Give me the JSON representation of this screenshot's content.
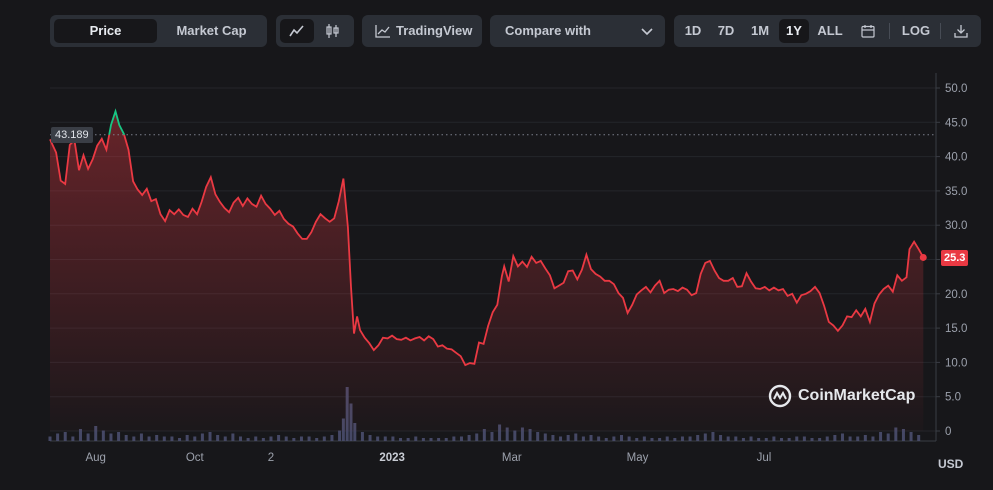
{
  "toolbar": {
    "price_tab": "Price",
    "marketcap_tab": "Market Cap",
    "line_chart_icon": "line-chart-icon",
    "candle_chart_icon": "candlestick-icon",
    "tradingview_label": "TradingView",
    "compare_label": "Compare with",
    "ranges": [
      "1D",
      "7D",
      "1M",
      "1Y",
      "ALL"
    ],
    "active_range": "1Y",
    "log_label": "LOG",
    "calendar_icon": "calendar-icon",
    "download_icon": "download-icon"
  },
  "watermark": "CoinMarketCap",
  "colors": {
    "up": "#16c784",
    "down": "#ea3943",
    "bg": "#17171a"
  },
  "chart_data": {
    "type": "area",
    "currency_label": "USD",
    "ylim": [
      0,
      50
    ],
    "yticks": [
      "50.0",
      "45.0",
      "40.0",
      "35.0",
      "30.0",
      "25.0",
      "20.0",
      "15.0",
      "10.0",
      "5.0",
      "0"
    ],
    "xtick_labels": [
      {
        "label": "Aug",
        "t": 0.06
      },
      {
        "label": "Oct",
        "t": 0.19
      },
      {
        "label": "2",
        "t": 0.29
      },
      {
        "label": "2023",
        "t": 0.449,
        "bold": true
      },
      {
        "label": "Mar",
        "t": 0.606
      },
      {
        "label": "May",
        "t": 0.771
      },
      {
        "label": "Jul",
        "t": 0.937
      }
    ],
    "current_price": "25.3",
    "reference_line": "43.189",
    "reference_value": 43.189,
    "series": [
      {
        "values": [
          [
            0.0,
            42.5
          ],
          [
            0.008,
            40.6
          ],
          [
            0.014,
            36.5
          ],
          [
            0.02,
            36.0
          ],
          [
            0.026,
            41.7
          ],
          [
            0.032,
            42.4
          ],
          [
            0.038,
            38.0
          ],
          [
            0.044,
            40.2
          ],
          [
            0.05,
            38.2
          ],
          [
            0.056,
            39.6
          ],
          [
            0.062,
            41.6
          ],
          [
            0.068,
            42.6
          ],
          [
            0.074,
            41.0
          ],
          [
            0.08,
            44.6
          ],
          [
            0.086,
            46.6
          ],
          [
            0.091,
            44.6
          ],
          [
            0.097,
            43.3
          ],
          [
            0.103,
            41.0
          ],
          [
            0.109,
            36.4
          ],
          [
            0.115,
            35.2
          ],
          [
            0.121,
            34.4
          ],
          [
            0.127,
            35.3
          ],
          [
            0.133,
            33.5
          ],
          [
            0.139,
            33.8
          ],
          [
            0.145,
            31.6
          ],
          [
            0.151,
            30.6
          ],
          [
            0.157,
            32.2
          ],
          [
            0.163,
            31.6
          ],
          [
            0.169,
            32.3
          ],
          [
            0.175,
            31.5
          ],
          [
            0.181,
            31.2
          ],
          [
            0.187,
            32.4
          ],
          [
            0.193,
            31.6
          ],
          [
            0.199,
            33.4
          ],
          [
            0.205,
            35.6
          ],
          [
            0.211,
            37.0
          ],
          [
            0.217,
            34.5
          ],
          [
            0.223,
            33.4
          ],
          [
            0.229,
            32.5
          ],
          [
            0.235,
            31.9
          ],
          [
            0.241,
            33.3
          ],
          [
            0.247,
            34.0
          ],
          [
            0.253,
            32.8
          ],
          [
            0.259,
            33.9
          ],
          [
            0.265,
            33.1
          ],
          [
            0.271,
            32.7
          ],
          [
            0.277,
            34.3
          ],
          [
            0.283,
            33.1
          ],
          [
            0.289,
            32.4
          ],
          [
            0.295,
            31.5
          ],
          [
            0.301,
            32.1
          ],
          [
            0.307,
            30.9
          ],
          [
            0.313,
            30.2
          ],
          [
            0.319,
            29.8
          ],
          [
            0.325,
            28.8
          ],
          [
            0.331,
            28.0
          ],
          [
            0.337,
            28.0
          ],
          [
            0.343,
            29.0
          ],
          [
            0.349,
            30.5
          ],
          [
            0.355,
            31.6
          ],
          [
            0.361,
            31.0
          ],
          [
            0.367,
            30.5
          ],
          [
            0.373,
            31.0
          ],
          [
            0.379,
            33.5
          ],
          [
            0.385,
            36.8
          ],
          [
            0.391,
            29.7
          ],
          [
            0.395,
            21.0
          ],
          [
            0.399,
            14.2
          ],
          [
            0.403,
            16.7
          ],
          [
            0.407,
            14.7
          ],
          [
            0.413,
            13.6
          ],
          [
            0.419,
            12.8
          ],
          [
            0.425,
            11.8
          ],
          [
            0.431,
            12.5
          ],
          [
            0.437,
            13.6
          ],
          [
            0.443,
            13.5
          ],
          [
            0.449,
            13.9
          ],
          [
            0.455,
            13.4
          ],
          [
            0.461,
            13.3
          ],
          [
            0.467,
            13.6
          ],
          [
            0.473,
            13.2
          ],
          [
            0.479,
            13.5
          ],
          [
            0.485,
            13.7
          ],
          [
            0.491,
            13.2
          ],
          [
            0.497,
            13.8
          ],
          [
            0.503,
            13.4
          ],
          [
            0.509,
            12.3
          ],
          [
            0.515,
            12.5
          ],
          [
            0.521,
            12.0
          ],
          [
            0.527,
            11.9
          ],
          [
            0.533,
            11.4
          ],
          [
            0.539,
            10.9
          ],
          [
            0.545,
            9.6
          ],
          [
            0.551,
            9.9
          ],
          [
            0.557,
            9.8
          ],
          [
            0.563,
            12.9
          ],
          [
            0.569,
            12.7
          ],
          [
            0.575,
            15.3
          ],
          [
            0.581,
            17.3
          ],
          [
            0.587,
            18.4
          ],
          [
            0.593,
            22.6
          ],
          [
            0.596,
            24.0
          ],
          [
            0.602,
            21.8
          ],
          [
            0.608,
            25.5
          ],
          [
            0.614,
            24.0
          ],
          [
            0.62,
            24.7
          ],
          [
            0.626,
            23.9
          ],
          [
            0.632,
            25.4
          ],
          [
            0.638,
            24.5
          ],
          [
            0.644,
            24.8
          ],
          [
            0.65,
            23.7
          ],
          [
            0.656,
            22.7
          ],
          [
            0.662,
            20.8
          ],
          [
            0.668,
            21.2
          ],
          [
            0.674,
            21.6
          ],
          [
            0.68,
            23.3
          ],
          [
            0.686,
            23.4
          ],
          [
            0.692,
            22.1
          ],
          [
            0.698,
            23.5
          ],
          [
            0.704,
            25.7
          ],
          [
            0.71,
            23.6
          ],
          [
            0.716,
            22.9
          ],
          [
            0.722,
            22.5
          ],
          [
            0.728,
            21.9
          ],
          [
            0.734,
            21.9
          ],
          [
            0.74,
            21.4
          ],
          [
            0.746,
            20.1
          ],
          [
            0.752,
            19.4
          ],
          [
            0.758,
            17.2
          ],
          [
            0.764,
            18.4
          ],
          [
            0.77,
            19.9
          ],
          [
            0.776,
            20.5
          ],
          [
            0.782,
            21.0
          ],
          [
            0.788,
            20.2
          ],
          [
            0.794,
            21.2
          ],
          [
            0.8,
            21.9
          ],
          [
            0.806,
            20.1
          ],
          [
            0.812,
            20.6
          ],
          [
            0.818,
            20.7
          ],
          [
            0.824,
            20.4
          ],
          [
            0.83,
            20.9
          ],
          [
            0.836,
            20.6
          ],
          [
            0.842,
            19.8
          ],
          [
            0.848,
            20.1
          ],
          [
            0.854,
            22.9
          ],
          [
            0.86,
            24.5
          ],
          [
            0.866,
            24.8
          ],
          [
            0.872,
            23.4
          ],
          [
            0.878,
            22.3
          ],
          [
            0.884,
            21.9
          ],
          [
            0.89,
            21.9
          ],
          [
            0.896,
            22.3
          ],
          [
            0.902,
            21.0
          ],
          [
            0.908,
            21.1
          ],
          [
            0.914,
            23.0
          ],
          [
            0.92,
            21.8
          ],
          [
            0.926,
            20.8
          ],
          [
            0.932,
            20.7
          ],
          [
            0.938,
            21.0
          ],
          [
            0.944,
            20.5
          ],
          [
            0.95,
            20.9
          ],
          [
            0.956,
            20.5
          ],
          [
            0.962,
            20.7
          ],
          [
            0.968,
            19.7
          ],
          [
            0.974,
            20.0
          ],
          [
            0.98,
            18.7
          ],
          [
            0.986,
            19.8
          ],
          [
            0.992,
            20.0
          ],
          [
            0.998,
            20.4
          ],
          [
            1.004,
            21.0
          ],
          [
            1.01,
            20.1
          ],
          [
            1.016,
            18.2
          ],
          [
            1.022,
            15.9
          ],
          [
            1.028,
            15.4
          ],
          [
            1.034,
            14.6
          ],
          [
            1.04,
            15.4
          ],
          [
            1.046,
            16.7
          ],
          [
            1.052,
            16.6
          ],
          [
            1.058,
            17.6
          ],
          [
            1.064,
            16.7
          ],
          [
            1.07,
            17.8
          ],
          [
            1.076,
            15.9
          ],
          [
            1.082,
            18.6
          ],
          [
            1.088,
            19.9
          ],
          [
            1.094,
            20.7
          ],
          [
            1.1,
            21.2
          ],
          [
            1.106,
            20.3
          ],
          [
            1.112,
            22.7
          ],
          [
            1.118,
            21.9
          ],
          [
            1.124,
            22.4
          ],
          [
            1.128,
            26.5
          ],
          [
            1.134,
            27.6
          ],
          [
            1.14,
            26.5
          ],
          [
            1.146,
            25.3
          ]
        ]
      }
    ],
    "volume": [
      [
        0.0,
        0.3
      ],
      [
        0.01,
        0.5
      ],
      [
        0.02,
        0.6
      ],
      [
        0.03,
        0.3
      ],
      [
        0.04,
        0.8
      ],
      [
        0.05,
        0.5
      ],
      [
        0.06,
        1.0
      ],
      [
        0.07,
        0.7
      ],
      [
        0.08,
        0.5
      ],
      [
        0.09,
        0.6
      ],
      [
        0.1,
        0.4
      ],
      [
        0.11,
        0.3
      ],
      [
        0.12,
        0.5
      ],
      [
        0.13,
        0.3
      ],
      [
        0.14,
        0.4
      ],
      [
        0.15,
        0.3
      ],
      [
        0.16,
        0.3
      ],
      [
        0.17,
        0.2
      ],
      [
        0.18,
        0.4
      ],
      [
        0.19,
        0.3
      ],
      [
        0.2,
        0.5
      ],
      [
        0.21,
        0.6
      ],
      [
        0.22,
        0.4
      ],
      [
        0.23,
        0.3
      ],
      [
        0.24,
        0.5
      ],
      [
        0.25,
        0.3
      ],
      [
        0.26,
        0.2
      ],
      [
        0.27,
        0.3
      ],
      [
        0.28,
        0.2
      ],
      [
        0.29,
        0.3
      ],
      [
        0.3,
        0.4
      ],
      [
        0.31,
        0.3
      ],
      [
        0.32,
        0.2
      ],
      [
        0.33,
        0.3
      ],
      [
        0.34,
        0.3
      ],
      [
        0.35,
        0.2
      ],
      [
        0.36,
        0.3
      ],
      [
        0.37,
        0.4
      ],
      [
        0.38,
        0.7
      ],
      [
        0.385,
        1.5
      ],
      [
        0.39,
        3.6
      ],
      [
        0.395,
        2.5
      ],
      [
        0.4,
        1.2
      ],
      [
        0.41,
        0.6
      ],
      [
        0.42,
        0.4
      ],
      [
        0.43,
        0.3
      ],
      [
        0.44,
        0.3
      ],
      [
        0.45,
        0.3
      ],
      [
        0.46,
        0.2
      ],
      [
        0.47,
        0.2
      ],
      [
        0.48,
        0.3
      ],
      [
        0.49,
        0.2
      ],
      [
        0.5,
        0.2
      ],
      [
        0.51,
        0.2
      ],
      [
        0.52,
        0.2
      ],
      [
        0.53,
        0.3
      ],
      [
        0.54,
        0.3
      ],
      [
        0.55,
        0.4
      ],
      [
        0.56,
        0.5
      ],
      [
        0.57,
        0.8
      ],
      [
        0.58,
        0.6
      ],
      [
        0.59,
        1.1
      ],
      [
        0.6,
        0.9
      ],
      [
        0.61,
        0.7
      ],
      [
        0.62,
        0.9
      ],
      [
        0.63,
        0.8
      ],
      [
        0.64,
        0.6
      ],
      [
        0.65,
        0.5
      ],
      [
        0.66,
        0.4
      ],
      [
        0.67,
        0.3
      ],
      [
        0.68,
        0.4
      ],
      [
        0.69,
        0.5
      ],
      [
        0.7,
        0.3
      ],
      [
        0.71,
        0.4
      ],
      [
        0.72,
        0.3
      ],
      [
        0.73,
        0.2
      ],
      [
        0.74,
        0.3
      ],
      [
        0.75,
        0.4
      ],
      [
        0.76,
        0.3
      ],
      [
        0.77,
        0.2
      ],
      [
        0.78,
        0.3
      ],
      [
        0.79,
        0.2
      ],
      [
        0.8,
        0.2
      ],
      [
        0.81,
        0.3
      ],
      [
        0.82,
        0.2
      ],
      [
        0.83,
        0.3
      ],
      [
        0.84,
        0.3
      ],
      [
        0.85,
        0.4
      ],
      [
        0.86,
        0.5
      ],
      [
        0.87,
        0.6
      ],
      [
        0.88,
        0.4
      ],
      [
        0.89,
        0.3
      ],
      [
        0.9,
        0.3
      ],
      [
        0.91,
        0.2
      ],
      [
        0.92,
        0.3
      ],
      [
        0.93,
        0.2
      ],
      [
        0.94,
        0.2
      ],
      [
        0.95,
        0.3
      ],
      [
        0.96,
        0.2
      ],
      [
        0.97,
        0.2
      ],
      [
        0.98,
        0.3
      ],
      [
        0.99,
        0.3
      ],
      [
        1.0,
        0.2
      ],
      [
        1.01,
        0.2
      ],
      [
        1.02,
        0.3
      ],
      [
        1.03,
        0.4
      ],
      [
        1.04,
        0.5
      ],
      [
        1.05,
        0.3
      ],
      [
        1.06,
        0.3
      ],
      [
        1.07,
        0.4
      ],
      [
        1.08,
        0.3
      ],
      [
        1.09,
        0.6
      ],
      [
        1.1,
        0.5
      ],
      [
        1.11,
        0.9
      ],
      [
        1.12,
        0.8
      ],
      [
        1.13,
        0.6
      ],
      [
        1.14,
        0.4
      ]
    ]
  }
}
